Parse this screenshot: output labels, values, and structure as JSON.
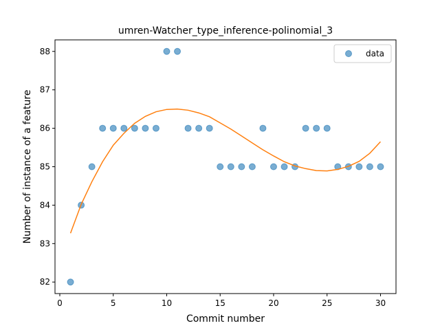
{
  "chart_data": {
    "type": "scatter",
    "title": "umren-Watcher_type_inference-polinomial_3",
    "xlabel": "Commit number",
    "ylabel": "Number of instance of a feature",
    "xlim": [
      -0.45,
      31.45
    ],
    "ylim": [
      81.7,
      88.3
    ],
    "xticks": [
      0,
      5,
      10,
      15,
      20,
      25,
      30
    ],
    "yticks": [
      82,
      83,
      84,
      85,
      86,
      87,
      88
    ],
    "grid": false,
    "legend_position": "top-right",
    "series": [
      {
        "name": "data",
        "kind": "scatter",
        "color": "#1f77b4",
        "x": [
          1,
          2,
          3,
          4,
          5,
          6,
          7,
          8,
          9,
          10,
          11,
          12,
          13,
          14,
          15,
          16,
          17,
          18,
          19,
          20,
          21,
          22,
          23,
          24,
          25,
          26,
          27,
          28,
          29,
          30
        ],
        "y": [
          82,
          84,
          85,
          86,
          86,
          86,
          86,
          86,
          86,
          88,
          88,
          86,
          86,
          86,
          85,
          85,
          85,
          85,
          86,
          85,
          85,
          85,
          86,
          86,
          86,
          85,
          85,
          85,
          85,
          85
        ]
      },
      {
        "kind": "line",
        "color": "#ff7f0e",
        "x": [
          1,
          2,
          3,
          4,
          5,
          6,
          7,
          8,
          9,
          10,
          11,
          12,
          13,
          14,
          15,
          16,
          17,
          18,
          19,
          20,
          21,
          22,
          23,
          24,
          25,
          26,
          27,
          28,
          29,
          30
        ],
        "y": [
          83.27,
          84.02,
          84.61,
          85.13,
          85.56,
          85.87,
          86.13,
          86.31,
          86.43,
          86.49,
          86.5,
          86.47,
          86.4,
          86.3,
          86.14,
          85.98,
          85.8,
          85.62,
          85.44,
          85.28,
          85.13,
          85.02,
          84.95,
          84.9,
          84.89,
          84.93,
          85.01,
          85.14,
          85.35,
          85.65
        ]
      }
    ]
  }
}
